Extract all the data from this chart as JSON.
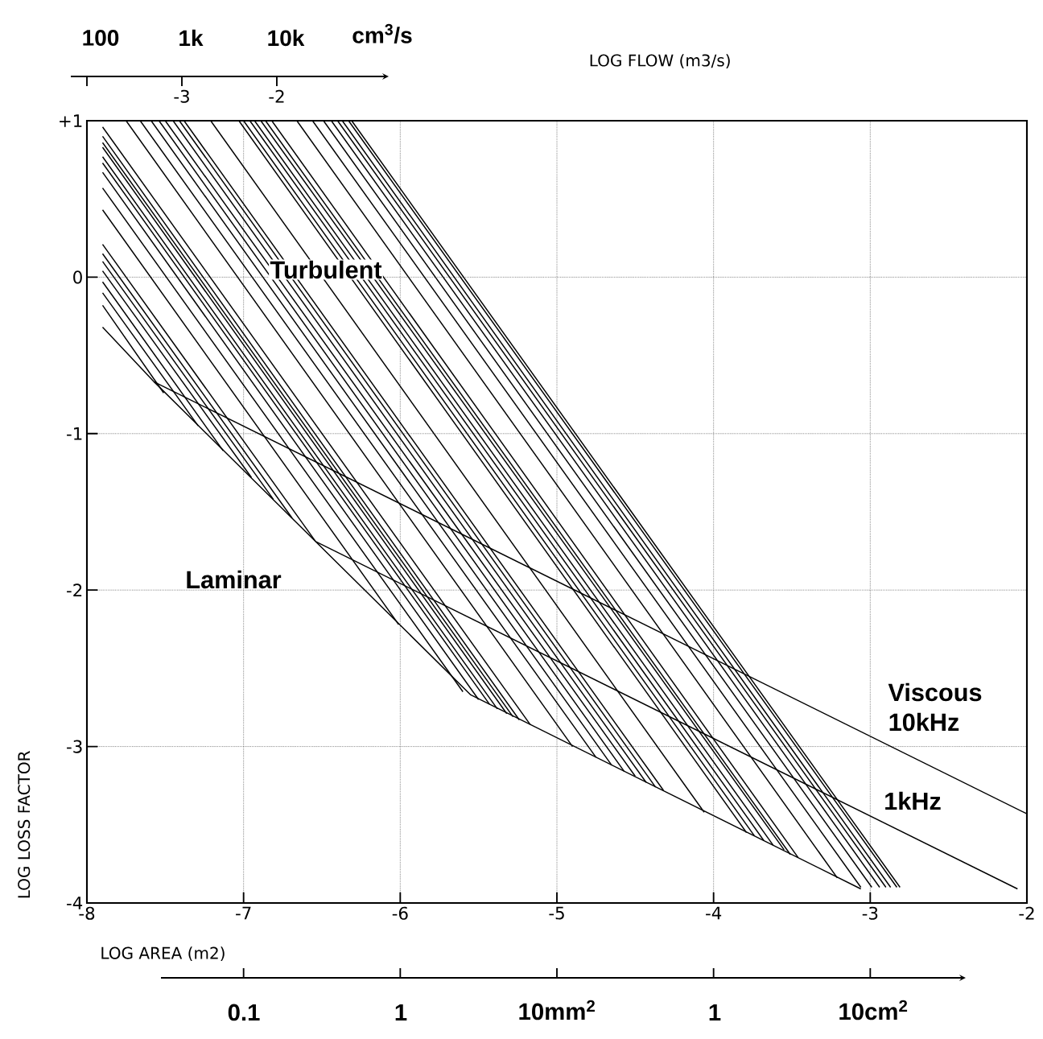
{
  "chart_data": {
    "type": "line",
    "xlabel": "LOG AREA (m2)",
    "ylabel": "LOG LOSS FACTOR",
    "x2label": "LOG FLOW (m3/s)",
    "xlim": [
      -8,
      -2
    ],
    "xticks": [
      -8,
      -7,
      -6,
      -5,
      -4,
      -3,
      -2
    ],
    "ylim": [
      -4,
      1
    ],
    "yticks": [
      -4,
      -3,
      -2,
      -1,
      0,
      {
        "value": 1,
        "label": "+1"
      }
    ],
    "x2lim": [
      -4,
      5.9
    ],
    "x2ticks": [
      {
        "value": -4,
        "label": null
      },
      -3,
      -2
    ],
    "grid": true,
    "annotations": [
      "Turbulent",
      "Laminar",
      "Viscous",
      "10kHz",
      "1kHz",
      "100",
      "1k",
      "10k",
      "cm$^{3}$/s",
      "0.1",
      "1",
      "10mm$^{2}$",
      "1",
      "10cm$^{2}$"
    ],
    "series": [
      {
        "color": "#000000",
        "x": [
          -7.9,
          -7.57,
          -5.55,
          -3.06
        ],
        "values": [
          -0.32,
          -0.67,
          -2.67,
          -3.91
        ]
      },
      {
        "color": "#000000",
        "x": [
          -7.57,
          -2.0
        ],
        "values": [
          -0.67,
          -3.43
        ]
      },
      {
        "color": "#000000",
        "x": [
          -6.54,
          -2.06
        ],
        "values": [
          -1.69,
          -3.91
        ]
      },
      {
        "color": "#000000",
        "x": [
          -7.9,
          -7.51
        ],
        "values": [
          -0.18,
          -0.74
        ]
      },
      {
        "color": "#000000",
        "x": [
          -7.9,
          -7.29
        ],
        "values": [
          -0.1,
          -0.95
        ]
      },
      {
        "color": "#000000",
        "x": [
          -7.9,
          -7.13
        ],
        "values": [
          -0.03,
          -1.11
        ]
      },
      {
        "color": "#000000",
        "x": [
          -7.9,
          -6.95
        ],
        "values": [
          0.04,
          -1.28
        ]
      },
      {
        "color": "#000000",
        "x": [
          -7.9,
          -6.81
        ],
        "values": [
          0.1,
          -1.42
        ]
      },
      {
        "color": "#000000",
        "x": [
          -7.9,
          -6.69
        ],
        "values": [
          0.15,
          -1.54
        ]
      },
      {
        "color": "#000000",
        "x": [
          -7.9,
          -6.54
        ],
        "values": [
          0.21,
          -1.69
        ]
      },
      {
        "color": "#000000",
        "x": [
          -7.9,
          -6.01
        ],
        "values": [
          0.43,
          -2.22
        ]
      },
      {
        "color": "#000000",
        "x": [
          -7.9,
          -5.6
        ],
        "values": [
          0.57,
          -2.65
        ]
      },
      {
        "color": "#000000",
        "x": [
          -7.9,
          -5.5
        ],
        "values": [
          0.67,
          -2.7
        ]
      },
      {
        "color": "#000000",
        "x": [
          -7.9,
          -5.43
        ],
        "values": [
          0.73,
          -2.73
        ]
      },
      {
        "color": "#000000",
        "x": [
          -7.9,
          -5.38
        ],
        "values": [
          0.77,
          -2.76
        ]
      },
      {
        "color": "#000000",
        "x": [
          -7.9,
          -5.32
        ],
        "values": [
          0.83,
          -2.79
        ]
      },
      {
        "color": "#000000",
        "x": [
          -7.9,
          -5.28
        ],
        "values": [
          0.86,
          -2.81
        ]
      },
      {
        "color": "#000000",
        "x": [
          -7.9,
          -5.24
        ],
        "values": [
          0.9,
          -2.83
        ]
      },
      {
        "color": "#000000",
        "x": [
          -7.9,
          -5.17
        ],
        "values": [
          0.96,
          -2.86
        ]
      },
      {
        "color": "#000000",
        "x": [
          -7.75,
          -4.9
        ],
        "values": [
          1,
          -3.0
        ]
      },
      {
        "color": "#000000",
        "x": [
          -7.66,
          -4.75
        ],
        "values": [
          1,
          -3.07
        ]
      },
      {
        "color": "#000000",
        "x": [
          -7.59,
          -4.65
        ],
        "values": [
          1,
          -3.12
        ]
      },
      {
        "color": "#000000",
        "x": [
          -7.54,
          -4.57
        ],
        "values": [
          1,
          -3.16
        ]
      },
      {
        "color": "#000000",
        "x": [
          -7.5,
          -4.5
        ],
        "values": [
          1,
          -3.19
        ]
      },
      {
        "color": "#000000",
        "x": [
          -7.45,
          -4.43
        ],
        "values": [
          1,
          -3.23
        ]
      },
      {
        "color": "#000000",
        "x": [
          -7.41,
          -4.37
        ],
        "values": [
          1,
          -3.26
        ]
      },
      {
        "color": "#000000",
        "x": [
          -7.38,
          -4.32
        ],
        "values": [
          1,
          -3.28
        ]
      },
      {
        "color": "#000000",
        "x": [
          -7.21,
          -4.06
        ],
        "values": [
          1,
          -3.42
        ]
      },
      {
        "color": "#000000",
        "x": [
          -7.03,
          -3.79
        ],
        "values": [
          1,
          -3.55
        ]
      },
      {
        "color": "#000000",
        "x": [
          -7.0,
          -3.74
        ],
        "values": [
          1,
          -3.57
        ]
      },
      {
        "color": "#000000",
        "x": [
          -6.96,
          -3.68
        ],
        "values": [
          1,
          -3.6
        ]
      },
      {
        "color": "#000000",
        "x": [
          -6.93,
          -3.62
        ],
        "values": [
          1,
          -3.63
        ]
      },
      {
        "color": "#000000",
        "x": [
          -6.89,
          -3.55
        ],
        "values": [
          1,
          -3.66
        ]
      },
      {
        "color": "#000000",
        "x": [
          -6.86,
          -3.51
        ],
        "values": [
          1,
          -3.69
        ]
      },
      {
        "color": "#000000",
        "x": [
          -6.82,
          -3.46
        ],
        "values": [
          1,
          -3.71
        ]
      },
      {
        "color": "#000000",
        "x": [
          -6.66,
          -3.21
        ],
        "values": [
          1,
          -3.84
        ]
      },
      {
        "color": "#000000",
        "x": [
          -6.56,
          -3.06
        ],
        "values": [
          1,
          -3.9
        ]
      },
      {
        "color": "#000000",
        "x": [
          -6.49,
          -2.99
        ],
        "values": [
          1,
          -3.9
        ]
      },
      {
        "color": "#000000",
        "x": [
          -6.44,
          -2.94
        ],
        "values": [
          1,
          -3.9
        ]
      },
      {
        "color": "#000000",
        "x": [
          -6.4,
          -2.9
        ],
        "values": [
          1,
          -3.9
        ]
      },
      {
        "color": "#000000",
        "x": [
          -6.37,
          -2.87
        ],
        "values": [
          1,
          -3.9
        ]
      },
      {
        "color": "#000000",
        "x": [
          -6.33,
          -2.83
        ],
        "values": [
          1,
          -3.9
        ]
      },
      {
        "color": "#000000",
        "x": [
          -6.31,
          -2.81
        ],
        "values": [
          1,
          -3.9
        ]
      }
    ]
  }
}
